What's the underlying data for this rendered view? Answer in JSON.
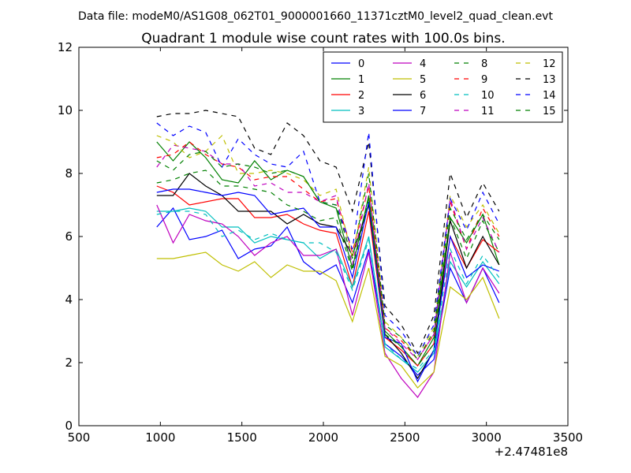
{
  "header": {
    "suptitle": "Data file: modeM0/AS1G08_062T01_9000001660_11371cztM0_level2_quad_clean.evt"
  },
  "chart_data": {
    "type": "line",
    "title": "Quadrant 1 module wise count rates with 100.0s bins.",
    "xlabel": "",
    "ylabel": "",
    "xlim": [
      500,
      3500
    ],
    "ylim": [
      0,
      12
    ],
    "x_offset_label": "+2.47481e8",
    "xticks": [
      500,
      1000,
      1500,
      2000,
      2500,
      3000,
      3500
    ],
    "xtick_labels": [
      "500",
      "1000",
      "1500",
      "2000",
      "2500",
      "3000",
      "3500"
    ],
    "yticks": [
      0,
      2,
      4,
      6,
      8,
      10,
      12
    ],
    "ytick_labels": [
      "0",
      "2",
      "4",
      "6",
      "8",
      "10",
      "12"
    ],
    "grid": false,
    "legend_position": "top-right",
    "legend_columns": 4,
    "x": [
      978,
      1078,
      1178,
      1278,
      1378,
      1478,
      1578,
      1678,
      1778,
      1878,
      1978,
      2078,
      2178,
      2278,
      2378,
      2478,
      2578,
      2678,
      2778,
      2878,
      2978,
      3078
    ],
    "series": [
      {
        "name": "0",
        "color": "#0000ff",
        "dash": "solid",
        "values": [
          6.3,
          6.9,
          5.9,
          6.0,
          6.2,
          5.3,
          5.6,
          5.7,
          6.3,
          5.2,
          4.8,
          5.1,
          3.9,
          5.6,
          2.6,
          2.2,
          1.6,
          2.1,
          5.0,
          3.9,
          5.0,
          3.9
        ]
      },
      {
        "name": "1",
        "color": "#008000",
        "dash": "solid",
        "values": [
          9.0,
          8.4,
          9.0,
          8.5,
          7.8,
          7.7,
          8.4,
          7.8,
          8.1,
          7.9,
          7.1,
          6.9,
          5.0,
          7.3,
          3.0,
          2.5,
          1.9,
          2.8,
          6.6,
          5.8,
          6.7,
          5.1
        ]
      },
      {
        "name": "2",
        "color": "#ff0000",
        "dash": "solid",
        "values": [
          7.6,
          7.4,
          7.0,
          7.1,
          7.2,
          7.2,
          6.6,
          6.6,
          6.7,
          6.4,
          6.2,
          6.1,
          4.4,
          6.8,
          2.8,
          2.4,
          1.9,
          2.6,
          6.0,
          5.0,
          5.9,
          5.5
        ]
      },
      {
        "name": "3",
        "color": "#00bfbf",
        "dash": "solid",
        "values": [
          6.8,
          6.8,
          6.9,
          6.8,
          6.3,
          6.3,
          5.8,
          6.0,
          5.9,
          5.8,
          5.3,
          5.6,
          4.4,
          6.0,
          2.5,
          2.1,
          1.7,
          2.3,
          5.2,
          4.4,
          5.2,
          4.5
        ]
      },
      {
        "name": "4",
        "color": "#bf00bf",
        "dash": "solid",
        "values": [
          7.0,
          5.8,
          6.7,
          6.5,
          6.4,
          6.0,
          5.4,
          5.8,
          6.0,
          5.4,
          5.4,
          5.6,
          3.5,
          5.5,
          2.3,
          1.5,
          0.9,
          1.7,
          5.5,
          3.9,
          5.0,
          4.2
        ]
      },
      {
        "name": "5",
        "color": "#bfbf00",
        "dash": "solid",
        "values": [
          5.3,
          5.3,
          5.4,
          5.5,
          5.1,
          4.9,
          5.2,
          4.7,
          5.1,
          4.9,
          4.9,
          4.6,
          3.3,
          5.0,
          2.2,
          1.9,
          1.2,
          1.7,
          4.4,
          4.0,
          4.7,
          3.4
        ]
      },
      {
        "name": "6",
        "color": "#000000",
        "dash": "solid",
        "values": [
          7.3,
          7.3,
          8.0,
          7.6,
          7.3,
          6.8,
          6.8,
          6.8,
          6.4,
          6.7,
          6.4,
          6.3,
          5.4,
          7.0,
          2.9,
          2.3,
          1.5,
          2.4,
          6.5,
          5.0,
          6.0,
          5.1
        ]
      },
      {
        "name": "7",
        "color": "#0000ff",
        "dash": "solid",
        "values": [
          7.4,
          7.5,
          7.5,
          7.4,
          7.3,
          7.4,
          7.3,
          6.7,
          6.8,
          6.9,
          6.3,
          6.3,
          4.7,
          7.1,
          2.8,
          2.6,
          1.4,
          2.4,
          6.0,
          4.7,
          5.1,
          4.9
        ]
      },
      {
        "name": "8",
        "color": "#008000",
        "dash": "dashed",
        "values": [
          7.7,
          7.8,
          8.0,
          8.1,
          7.6,
          7.6,
          7.5,
          7.4,
          7.0,
          6.8,
          6.5,
          6.6,
          4.9,
          7.2,
          2.9,
          2.5,
          1.9,
          2.6,
          6.6,
          5.3,
          6.5,
          5.5
        ]
      },
      {
        "name": "9",
        "color": "#ff0000",
        "dash": "dashed",
        "values": [
          8.5,
          8.6,
          9.0,
          8.6,
          8.3,
          8.2,
          7.8,
          7.9,
          7.9,
          7.5,
          7.1,
          7.2,
          5.5,
          7.6,
          3.1,
          2.7,
          2.1,
          2.9,
          7.1,
          5.6,
          6.9,
          6.0
        ]
      },
      {
        "name": "10",
        "color": "#00bfbf",
        "dash": "dashed",
        "values": [
          6.7,
          6.8,
          6.8,
          6.7,
          6.0,
          6.2,
          5.9,
          6.1,
          5.9,
          5.8,
          5.8,
          5.5,
          4.3,
          5.9,
          2.6,
          2.1,
          1.8,
          2.4,
          5.6,
          4.5,
          5.4,
          4.7
        ]
      },
      {
        "name": "11",
        "color": "#bf00bf",
        "dash": "dashed",
        "values": [
          8.2,
          8.9,
          8.8,
          8.7,
          8.3,
          8.3,
          7.6,
          7.7,
          7.4,
          7.4,
          7.1,
          7.3,
          5.1,
          7.7,
          3.1,
          2.6,
          2.1,
          2.9,
          7.2,
          5.6,
          6.6,
          5.5
        ]
      },
      {
        "name": "12",
        "color": "#bfbf00",
        "dash": "dashed",
        "values": [
          9.2,
          9.0,
          8.5,
          8.7,
          9.2,
          8.0,
          8.0,
          8.1,
          8.0,
          7.8,
          7.3,
          7.5,
          5.3,
          8.2,
          3.3,
          2.8,
          2.2,
          3.1,
          7.3,
          6.3,
          7.0,
          6.1
        ]
      },
      {
        "name": "13",
        "color": "#000000",
        "dash": "dashed",
        "values": [
          9.8,
          9.9,
          9.9,
          10.0,
          9.9,
          9.8,
          8.8,
          8.6,
          9.6,
          9.2,
          8.4,
          8.2,
          6.8,
          9.0,
          3.8,
          3.2,
          2.3,
          3.5,
          8.0,
          6.6,
          7.7,
          6.8
        ]
      },
      {
        "name": "14",
        "color": "#0000ff",
        "dash": "dashed",
        "values": [
          9.6,
          9.2,
          9.5,
          9.3,
          8.2,
          9.1,
          8.6,
          8.3,
          8.2,
          8.7,
          7.1,
          7.0,
          5.6,
          9.3,
          3.5,
          3.0,
          2.2,
          3.2,
          7.2,
          6.2,
          7.4,
          6.4
        ]
      },
      {
        "name": "15",
        "color": "#008000",
        "dash": "dashed",
        "values": [
          8.4,
          8.1,
          8.6,
          8.7,
          8.2,
          8.3,
          8.2,
          8.0,
          8.1,
          7.9,
          7.1,
          7.0,
          5.3,
          8.0,
          3.2,
          2.8,
          2.1,
          3.0,
          6.9,
          5.9,
          6.7,
          5.9
        ]
      }
    ]
  }
}
